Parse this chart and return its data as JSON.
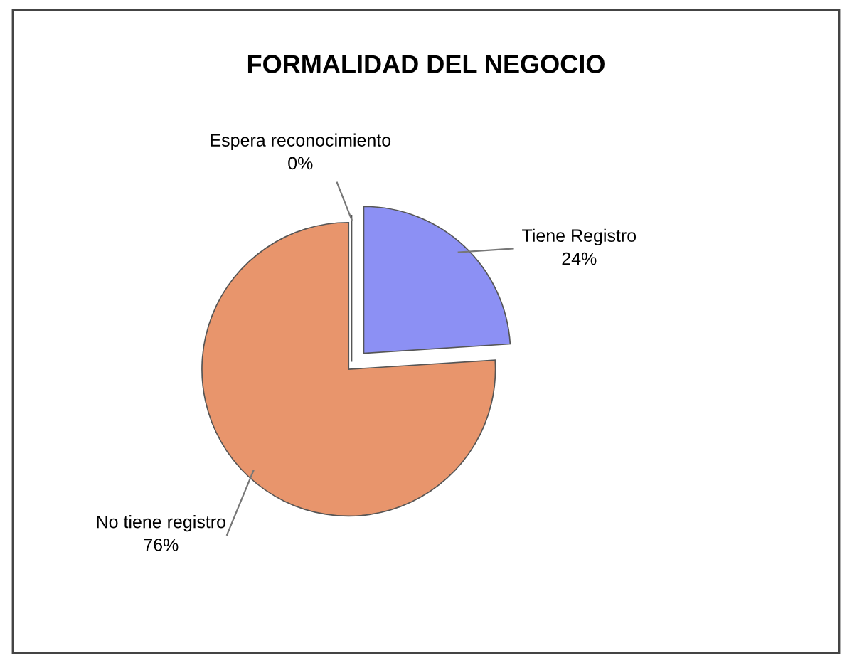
{
  "chart_data": {
    "type": "pie",
    "title": "FORMALIDAD DEL NEGOCIO",
    "categories": [
      "Tiene Registro",
      "No tiene registro",
      "Espera reconocimiento"
    ],
    "values": [
      24,
      76,
      0
    ],
    "value_labels": [
      "24%",
      "76%",
      "0%"
    ],
    "colors": [
      "#8c90f4",
      "#e8956c",
      "#b0b0b0"
    ],
    "legend": false
  }
}
